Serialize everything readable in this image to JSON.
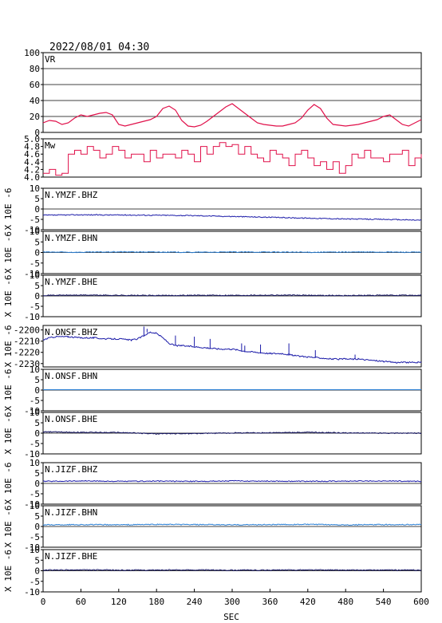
{
  "title": "2022/08/01 04:30",
  "xlabel": "SEC",
  "x_ticks": [
    0,
    60,
    120,
    180,
    240,
    300,
    360,
    420,
    480,
    540,
    600
  ],
  "xlim": [
    0,
    600
  ],
  "colors": {
    "vr": "#e0104a",
    "mw": "#e0104a",
    "dark_blue": "#1a1aa8",
    "navy": "#101060",
    "light_blue": "#2a7fd4",
    "axes": "#000000",
    "grid": "#000000"
  },
  "chart_data": [
    {
      "type": "line",
      "label": "VR",
      "ylim": [
        0,
        100
      ],
      "y_ticks": [
        0,
        20,
        40,
        60,
        80,
        100
      ],
      "grid": true,
      "color": "#e0104a",
      "series": [
        {
          "x": [
            0,
            10,
            20,
            30,
            40,
            50,
            60,
            70,
            80,
            90,
            100,
            110,
            120,
            130,
            140,
            150,
            160,
            170,
            180,
            190,
            200,
            210,
            220,
            230,
            240,
            250,
            260,
            270,
            280,
            290,
            300,
            310,
            320,
            330,
            340,
            350,
            360,
            370,
            380,
            390,
            400,
            410,
            420,
            430,
            440,
            450,
            460,
            470,
            480,
            490,
            500,
            510,
            520,
            530,
            540,
            550,
            560,
            570,
            580,
            590,
            600
          ],
          "y": [
            12,
            15,
            14,
            10,
            12,
            18,
            22,
            20,
            22,
            24,
            25,
            22,
            10,
            8,
            10,
            12,
            14,
            16,
            20,
            30,
            33,
            28,
            15,
            8,
            7,
            9,
            14,
            20,
            26,
            32,
            36,
            30,
            24,
            18,
            12,
            10,
            9,
            8,
            8,
            10,
            12,
            18,
            28,
            35,
            30,
            18,
            10,
            9,
            8,
            9,
            10,
            12,
            14,
            16,
            20,
            22,
            16,
            10,
            8,
            12,
            16
          ]
        }
      ]
    },
    {
      "type": "line",
      "label": "Mw",
      "ylim": [
        4.0,
        5.0
      ],
      "y_ticks": [
        4.0,
        4.2,
        4.4,
        4.6,
        4.8,
        5.0
      ],
      "tick_labels": [
        "4.0",
        "4.2",
        "4.4",
        "4.6",
        "4.8",
        "5.0"
      ],
      "grid": false,
      "color": "#e0104a",
      "series": [
        {
          "x": [
            0,
            10,
            20,
            30,
            40,
            50,
            60,
            70,
            80,
            90,
            100,
            110,
            120,
            130,
            140,
            150,
            160,
            170,
            180,
            190,
            200,
            210,
            220,
            230,
            240,
            250,
            260,
            270,
            280,
            290,
            300,
            310,
            320,
            330,
            340,
            350,
            360,
            370,
            380,
            390,
            400,
            410,
            420,
            430,
            440,
            450,
            460,
            470,
            480,
            490,
            500,
            510,
            520,
            530,
            540,
            550,
            560,
            570,
            580,
            590,
            600
          ],
          "y": [
            4.1,
            4.2,
            4.05,
            4.1,
            4.6,
            4.7,
            4.6,
            4.8,
            4.7,
            4.5,
            4.6,
            4.8,
            4.7,
            4.5,
            4.6,
            4.6,
            4.4,
            4.7,
            4.5,
            4.6,
            4.6,
            4.5,
            4.7,
            4.6,
            4.4,
            4.8,
            4.6,
            4.8,
            4.9,
            4.8,
            4.85,
            4.6,
            4.8,
            4.6,
            4.5,
            4.4,
            4.7,
            4.6,
            4.5,
            4.3,
            4.6,
            4.7,
            4.5,
            4.3,
            4.4,
            4.2,
            4.4,
            4.1,
            4.3,
            4.6,
            4.5,
            4.7,
            4.5,
            4.5,
            4.4,
            4.6,
            4.6,
            4.7,
            4.3,
            4.5,
            4.6
          ]
        }
      ]
    },
    {
      "type": "line",
      "label": "N.YMZF.BHZ",
      "ylabel": "X 10E -6",
      "ylim": [
        -10,
        10
      ],
      "y_ticks": [
        -10,
        -5,
        0,
        5,
        10
      ],
      "color": "#1a1aa8",
      "series": [
        {
          "x": [
            0,
            60,
            120,
            180,
            240,
            300,
            360,
            420,
            480,
            540,
            600
          ],
          "y": [
            -3.0,
            -2.8,
            -2.9,
            -3.0,
            -3.2,
            -3.6,
            -4.0,
            -4.4,
            -4.8,
            -5.0,
            -5.4
          ]
        }
      ]
    },
    {
      "type": "line",
      "label": "N.YMZF.BHN",
      "ylabel": "X 10E -6",
      "ylim": [
        -10,
        10
      ],
      "y_ticks": [
        -10,
        -5,
        0,
        5,
        10
      ],
      "color": "#2a7fd4",
      "series": [
        {
          "x": [
            0,
            60,
            120,
            180,
            240,
            300,
            360,
            420,
            480,
            540,
            600
          ],
          "y": [
            0.2,
            0.1,
            0.3,
            0.2,
            0.1,
            0.2,
            0.2,
            0.1,
            0.2,
            0.2,
            0.1
          ]
        }
      ]
    },
    {
      "type": "line",
      "label": "N.YMZF.BHE",
      "ylabel": "X 10E -6",
      "ylim": [
        -10,
        10
      ],
      "y_ticks": [
        -10,
        -5,
        0,
        5,
        10
      ],
      "color": "#101060",
      "series": [
        {
          "x": [
            0,
            60,
            120,
            180,
            240,
            300,
            360,
            420,
            480,
            540,
            600
          ],
          "y": [
            0.3,
            0.4,
            0.3,
            0.2,
            0.3,
            0.3,
            0.4,
            0.3,
            0.2,
            0.3,
            0.3
          ]
        }
      ]
    },
    {
      "type": "line",
      "label": "N.ONSF.BHZ",
      "ylabel": "X 10E -6",
      "ylim": [
        -2233,
        -2196
      ],
      "y_ticks": [
        -2230,
        -2220,
        -2210,
        -2200
      ],
      "tick_labels": [
        "-2230",
        "-2220",
        "-2210",
        "-2200"
      ],
      "color": "#1a1aa8",
      "series": [
        {
          "x": [
            0,
            10,
            20,
            40,
            60,
            80,
            100,
            120,
            140,
            150,
            160,
            170,
            180,
            190,
            200,
            210,
            220,
            240,
            260,
            280,
            300,
            320,
            340,
            360,
            380,
            400,
            420,
            440,
            460,
            480,
            500,
            520,
            540,
            560,
            580,
            600
          ],
          "y": [
            -2209,
            -2207,
            -2206,
            -2206,
            -2207,
            -2207,
            -2208,
            -2208,
            -2209,
            -2208,
            -2205,
            -2202,
            -2203,
            -2207,
            -2212,
            -2214,
            -2214,
            -2215,
            -2216,
            -2217,
            -2217,
            -2219,
            -2220,
            -2221,
            -2221,
            -2223,
            -2224,
            -2225,
            -2226,
            -2226,
            -2226,
            -2227,
            -2228,
            -2229,
            -2229,
            -2229
          ]
        }
      ]
    },
    {
      "type": "line",
      "label": "N.ONSF.BHN",
      "ylabel": "X 10E -6",
      "ylim": [
        -10,
        10
      ],
      "y_ticks": [
        -10,
        -5,
        0,
        5,
        10
      ],
      "color": "#2a7fd4",
      "series": [
        {
          "x": [
            0,
            600
          ],
          "y": [
            0.2,
            0.2
          ]
        }
      ]
    },
    {
      "type": "line",
      "label": "N.ONSF.BHE",
      "ylabel": "X 10E -6",
      "ylim": [
        -10,
        10
      ],
      "y_ticks": [
        -10,
        -5,
        0,
        5,
        10
      ],
      "color": "#101060",
      "series": [
        {
          "x": [
            0,
            10,
            60,
            120,
            180,
            240,
            300,
            360,
            420,
            480,
            540,
            600
          ],
          "y": [
            0.5,
            0.6,
            0.4,
            0.3,
            -0.3,
            -0.2,
            0.1,
            0.2,
            0.4,
            0.1,
            0.0,
            0.0
          ]
        }
      ]
    },
    {
      "type": "line",
      "label": "N.JIZF.BHZ",
      "ylabel": "X 10E -6",
      "ylim": [
        -10,
        10
      ],
      "y_ticks": [
        -10,
        -5,
        0,
        5,
        10
      ],
      "color": "#1a1aa8",
      "series": [
        {
          "x": [
            0,
            60,
            120,
            180,
            240,
            300,
            360,
            420,
            480,
            540,
            600
          ],
          "y": [
            1.0,
            1.2,
            1.0,
            1.1,
            1.0,
            1.2,
            1.1,
            1.0,
            1.1,
            1.2,
            1.0
          ]
        }
      ]
    },
    {
      "type": "line",
      "label": "N.JIZF.BHN",
      "ylabel": "X 10E -6",
      "ylim": [
        -10,
        10
      ],
      "y_ticks": [
        -10,
        -5,
        0,
        5,
        10
      ],
      "color": "#2a7fd4",
      "series": [
        {
          "x": [
            0,
            60,
            120,
            180,
            240,
            300,
            360,
            420,
            480,
            540,
            600
          ],
          "y": [
            0.8,
            0.9,
            0.8,
            1.0,
            0.9,
            0.8,
            0.9,
            1.0,
            0.8,
            0.9,
            0.9
          ]
        }
      ]
    },
    {
      "type": "line",
      "label": "N.JIZF.BHE",
      "ylabel": "X 10E -6",
      "ylim": [
        -10,
        10
      ],
      "y_ticks": [
        -10,
        -5,
        0,
        5,
        10
      ],
      "color": "#101060",
      "series": [
        {
          "x": [
            0,
            60,
            120,
            180,
            240,
            300,
            360,
            420,
            480,
            540,
            600
          ],
          "y": [
            0.3,
            0.4,
            0.3,
            0.3,
            0.4,
            0.3,
            0.3,
            0.4,
            0.3,
            0.3,
            0.3
          ]
        }
      ]
    }
  ]
}
